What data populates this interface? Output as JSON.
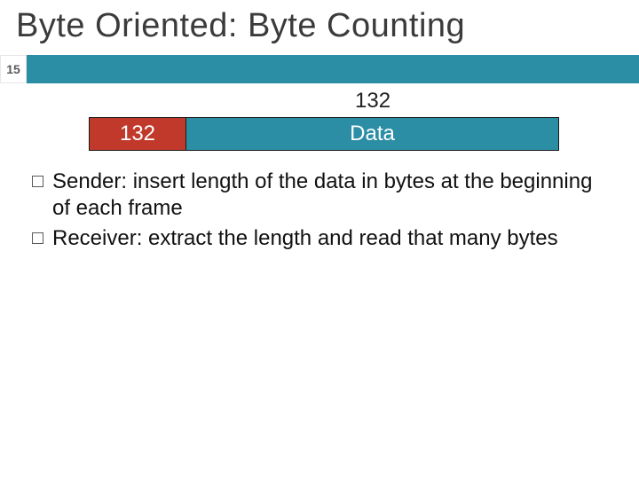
{
  "slide": {
    "title": "Byte Oriented: Byte Counting",
    "page_number": "15",
    "band": {
      "bg_color": "#2b8ea5"
    },
    "bracket_label": "132",
    "frame": {
      "length_box": {
        "text": "132",
        "bg_color": "#c0392b",
        "fg_color": "#ffffff"
      },
      "data_box": {
        "text": "Data",
        "bg_color": "#2b8ea5",
        "fg_color": "#ffffff"
      }
    },
    "bullets": [
      "Sender: insert length of the data in bytes at the beginning of each frame",
      "Receiver: extract the length and read that many bytes"
    ]
  },
  "style": {
    "title_fontsize": 38,
    "body_fontsize": 24,
    "title_color": "#3b3b3b",
    "body_color": "#111111"
  }
}
